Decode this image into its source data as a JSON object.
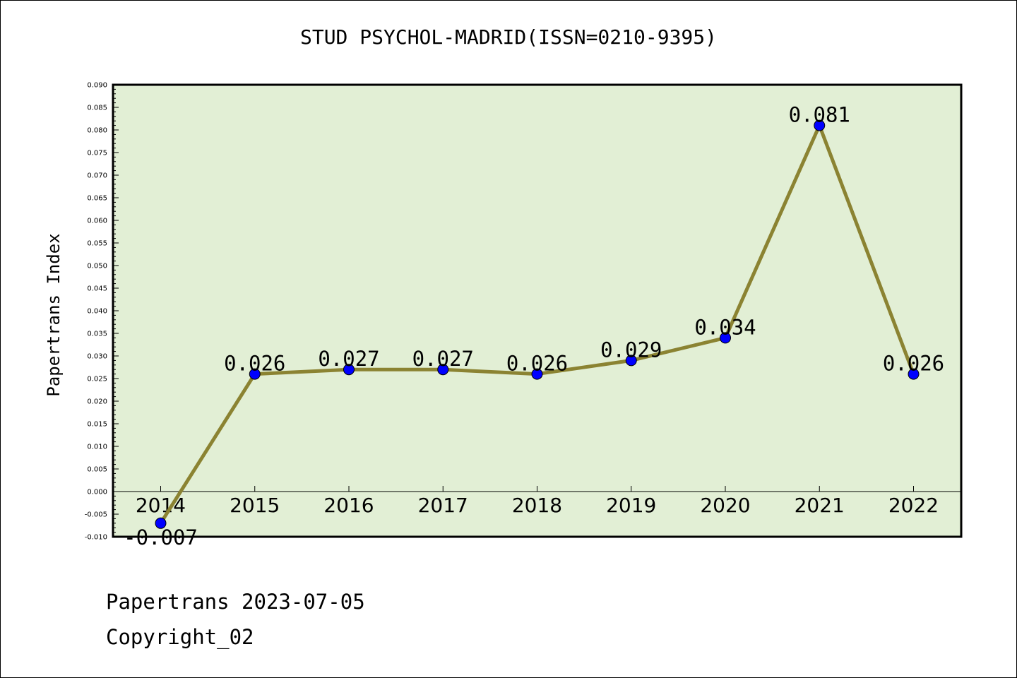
{
  "chart_data": {
    "type": "line",
    "title": "STUD PSYCHOL-MADRID(ISSN=0210-9395)",
    "xlabel": "",
    "ylabel": "Papertrans Index",
    "categories": [
      "2014",
      "2015",
      "2016",
      "2017",
      "2018",
      "2019",
      "2020",
      "2021",
      "2022"
    ],
    "series": [
      {
        "values": [
          -0.007,
          0.026,
          0.027,
          0.027,
          0.026,
          0.029,
          0.034,
          0.081,
          0.026
        ],
        "data_labels": [
          "-0.007",
          "0.026",
          "0.027",
          "0.027",
          "0.026",
          "0.029",
          "0.034",
          "0.081",
          "0.026"
        ]
      }
    ],
    "ylim": [
      -0.01,
      0.09
    ],
    "y_ticks": [
      "-0.010",
      "-0.005",
      "0.000",
      "0.005",
      "0.010",
      "0.015",
      "0.020",
      "0.025",
      "0.030",
      "0.035",
      "0.040",
      "0.045",
      "0.050",
      "0.055",
      "0.060",
      "0.065",
      "0.070",
      "0.075",
      "0.080",
      "0.085",
      "0.090"
    ],
    "grid": false,
    "colors": {
      "plot_background": "#e2efd5",
      "line": "#8b8332",
      "marker": "#0000ff",
      "zero_line": "#000000"
    }
  },
  "footer": {
    "line1": "Papertrans 2023-07-05",
    "line2": "Copyright_02"
  }
}
